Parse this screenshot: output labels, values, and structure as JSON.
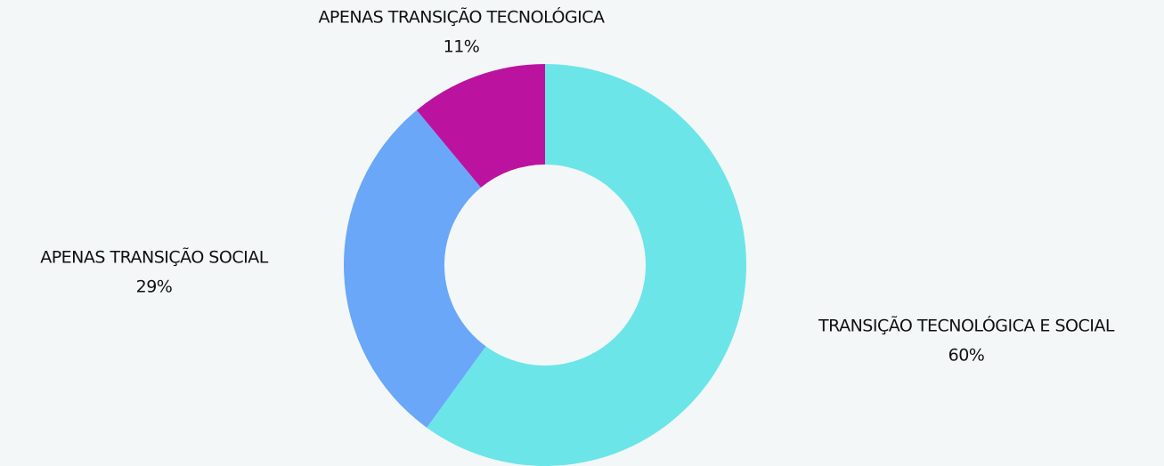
{
  "chart_data": {
    "type": "donut",
    "categories": [
      "TRANSIÇÃO TECNOLÓGICA E SOCIAL",
      "APENAS TRANSIÇÃO SOCIAL",
      "APENAS TRANSIÇÃO TECNOLÓGICA"
    ],
    "values": [
      60,
      29,
      11
    ],
    "value_labels": [
      "60%",
      "29%",
      "11%"
    ],
    "colors": [
      "#6ce5e8",
      "#6aa7f8",
      "#bb139f"
    ]
  }
}
